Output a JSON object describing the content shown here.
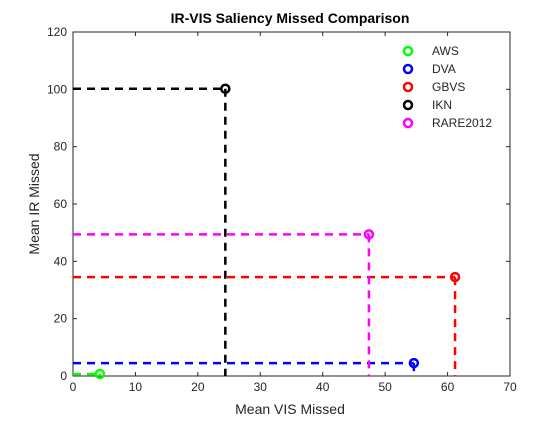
{
  "chart_data": {
    "type": "scatter",
    "title": "IR-VIS Saliency Missed Comparison",
    "xlabel": "Mean VIS Missed",
    "ylabel": "Mean IR Missed",
    "xlim": [
      0,
      70
    ],
    "ylim": [
      0,
      120
    ],
    "xticks": [
      0,
      10,
      20,
      30,
      40,
      50,
      60,
      70
    ],
    "yticks": [
      0,
      20,
      40,
      60,
      80,
      100,
      120
    ],
    "grid": false,
    "legend_position": "top-right",
    "series": [
      {
        "name": "AWS",
        "color": "#00ff00",
        "x": 4.3,
        "y": 0.7
      },
      {
        "name": "DVA",
        "color": "#0000ff",
        "x": 54.6,
        "y": 4.5
      },
      {
        "name": "GBVS",
        "color": "#ff0000",
        "x": 61.2,
        "y": 34.5
      },
      {
        "name": "IKN",
        "color": "#000000",
        "x": 24.4,
        "y": 100.2
      },
      {
        "name": "RARE2012",
        "color": "#ff00ff",
        "x": 47.4,
        "y": 49.4
      }
    ]
  }
}
